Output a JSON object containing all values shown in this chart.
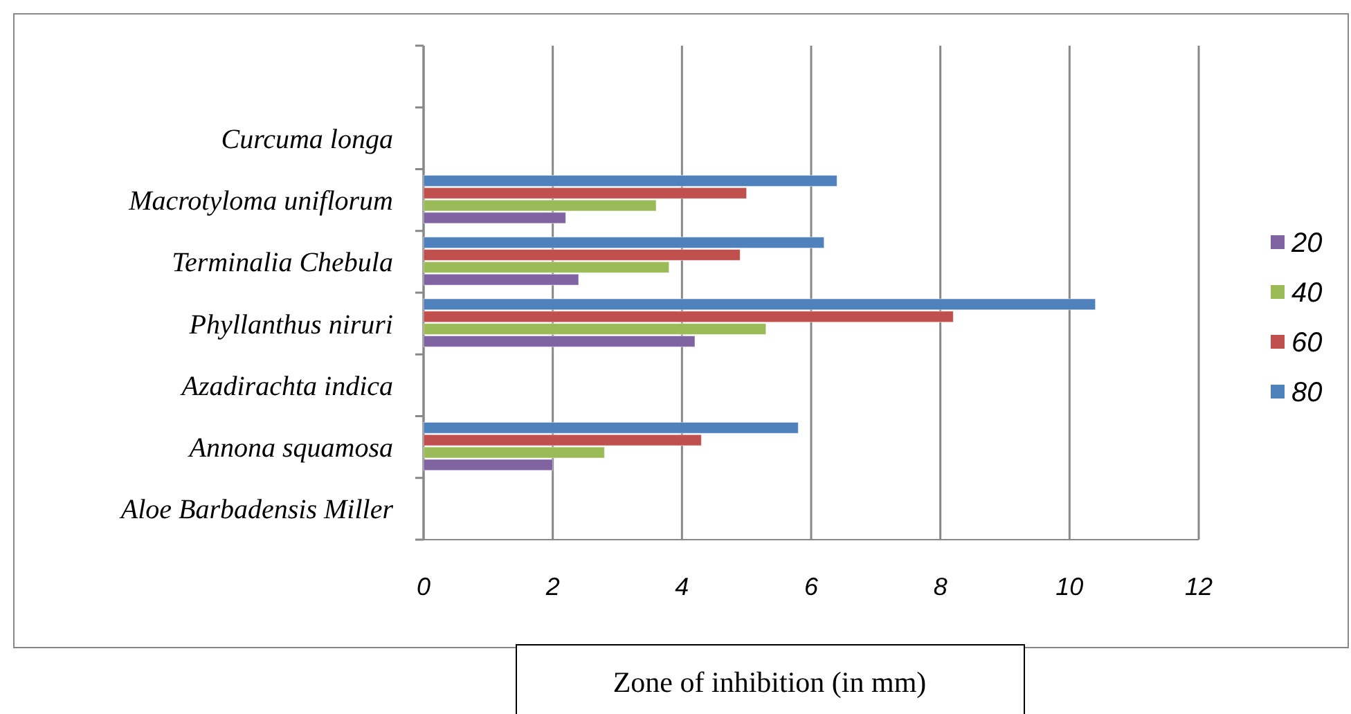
{
  "chart_data": {
    "type": "bar",
    "orientation": "horizontal",
    "xlabel": "Zone of inhibition (in mm)",
    "categories": [
      null,
      "Curcuma longa",
      "Macrotyloma uniflorum",
      "Terminalia Chebula",
      "Phyllanthus niruri",
      "Azadirachta indica",
      "Annona squamosa",
      "Aloe Barbadensis Miller"
    ],
    "series": [
      {
        "name": "20",
        "color": "#8064a2",
        "values": [
          null,
          null,
          2.2,
          2.4,
          4.2,
          null,
          2.0,
          null
        ]
      },
      {
        "name": "40",
        "color": "#9bbb59",
        "values": [
          null,
          null,
          3.6,
          3.8,
          5.3,
          null,
          2.8,
          null
        ]
      },
      {
        "name": "60",
        "color": "#c0504d",
        "values": [
          null,
          null,
          5.0,
          4.9,
          8.2,
          null,
          4.3,
          null
        ]
      },
      {
        "name": "80",
        "color": "#4f81bd",
        "values": [
          null,
          null,
          6.4,
          6.2,
          10.4,
          null,
          5.8,
          null
        ]
      }
    ],
    "xlim": [
      0,
      12
    ],
    "xticks": [
      0,
      2,
      4,
      6,
      8,
      10,
      12
    ],
    "grid": "x",
    "legend": "right"
  }
}
